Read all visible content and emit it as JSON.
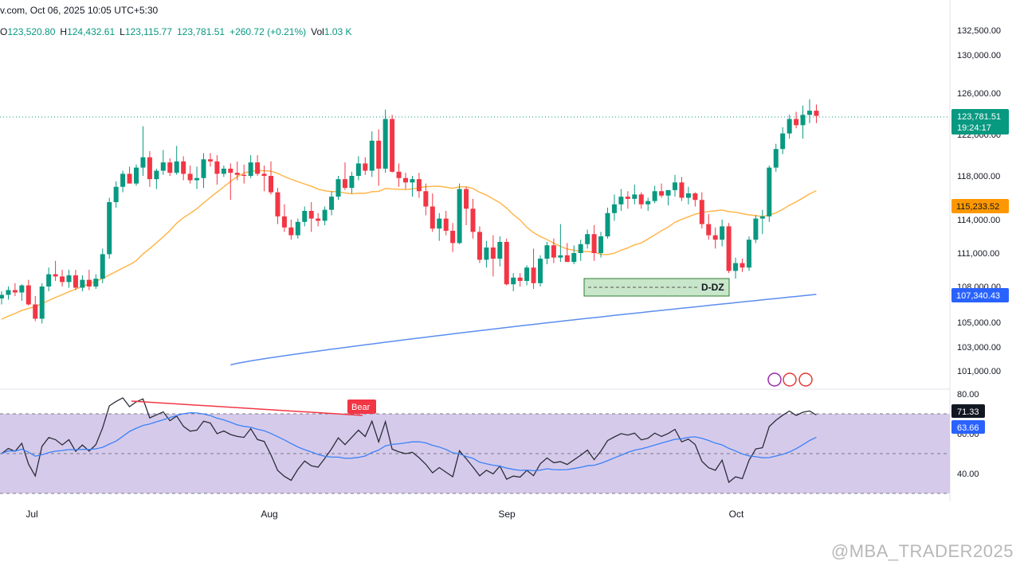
{
  "header": {
    "title": "v.com, Oct 06, 2025 10:05 UTC+5:30",
    "ohlc": [
      {
        "key": "O",
        "val": "123,520.80"
      },
      {
        "key": "H",
        "val": "124,432.61"
      },
      {
        "key": "L",
        "val": "123,115.77"
      },
      {
        "key": "",
        "val": "123,781.51"
      },
      {
        "key": "",
        "val": "+260.72 (+0.21%)"
      },
      {
        "key": "Vol",
        "val": "1.03 K"
      }
    ]
  },
  "colors": {
    "up": "#089981",
    "down": "#f23645",
    "ma_fast": "#ffb74d",
    "ma_slow": "#5b8def",
    "rsi_line": "#2a2e39",
    "rsi_ma": "#3b82f6",
    "rsi_band": "#d1c4e9",
    "dz_fill": "#c8e6c9",
    "dz_border": "#2e7d32"
  },
  "chart_data": {
    "type": "candlestick",
    "xlabels": [
      "Jul",
      "Aug",
      "Sep",
      "Oct"
    ],
    "ylim": [
      100000,
      132500
    ],
    "price_axis_labels": [
      "132,500.00",
      "130,000.00",
      "126,000.00",
      "122,000.00",
      "118,000.00",
      "114,000.00",
      "111,000.00",
      "108,000.00",
      "105,000.00",
      "103,000.00",
      "101,000.00"
    ],
    "price_axis_values": [
      132500,
      130000,
      126000,
      122000,
      118000,
      114000,
      111000,
      108000,
      105000,
      103000,
      101000
    ],
    "current_price_label": "123,781.51",
    "countdown_label": "19:24:17",
    "ma_fast_label": "115,233.52",
    "ma_slow_label": "107,340.43",
    "demand_zone_label": "D-DZ",
    "candles": [
      [
        107000,
        107600,
        106500,
        107300
      ],
      [
        107300,
        108000,
        106900,
        107700
      ],
      [
        107700,
        108300,
        107200,
        107500
      ],
      [
        107500,
        108200,
        106800,
        108100
      ],
      [
        108100,
        108600,
        106400,
        106500
      ],
      [
        106500,
        107200,
        105100,
        105300
      ],
      [
        105300,
        108300,
        104900,
        108000
      ],
      [
        108000,
        109700,
        107600,
        109100
      ],
      [
        109100,
        110300,
        108500,
        108900
      ],
      [
        108900,
        109500,
        108000,
        108400
      ],
      [
        108400,
        109500,
        107900,
        109000
      ],
      [
        109000,
        109500,
        107700,
        107900
      ],
      [
        107900,
        109000,
        107600,
        108600
      ],
      [
        108600,
        109500,
        107700,
        108000
      ],
      [
        108000,
        109100,
        107800,
        108700
      ],
      [
        108700,
        111400,
        108300,
        110900
      ],
      [
        110900,
        116000,
        110500,
        115600
      ],
      [
        115600,
        117500,
        115100,
        117000
      ],
      [
        117000,
        118500,
        116500,
        118200
      ],
      [
        118200,
        118900,
        117400,
        117300
      ],
      [
        117300,
        119100,
        117100,
        118800
      ],
      [
        118800,
        122800,
        118000,
        119800
      ],
      [
        119800,
        120400,
        117000,
        117700
      ],
      [
        117700,
        118700,
        116800,
        118500
      ],
      [
        118500,
        120500,
        118100,
        119300
      ],
      [
        119300,
        119700,
        118000,
        118300
      ],
      [
        118300,
        120900,
        118100,
        119400
      ],
      [
        119400,
        119900,
        117600,
        118200
      ],
      [
        118200,
        119000,
        117300,
        117600
      ],
      [
        117600,
        118900,
        116800,
        117800
      ],
      [
        117800,
        120200,
        116900,
        119600
      ],
      [
        119600,
        120200,
        118900,
        119400
      ],
      [
        119400,
        120000,
        117200,
        118200
      ],
      [
        118200,
        119000,
        117900,
        118700
      ],
      [
        118700,
        119200,
        115800,
        118300
      ],
      [
        118300,
        119400,
        117600,
        118100
      ],
      [
        118100,
        119100,
        117300,
        118000
      ],
      [
        118000,
        120000,
        117800,
        119300
      ],
      [
        119300,
        120000,
        118000,
        118200
      ],
      [
        118200,
        119000,
        116600,
        118000
      ],
      [
        118000,
        119400,
        116300,
        116500
      ],
      [
        116500,
        116900,
        113600,
        114300
      ],
      [
        114300,
        115400,
        112900,
        113300
      ],
      [
        113300,
        114000,
        112200,
        112600
      ],
      [
        112600,
        114100,
        112300,
        113800
      ],
      [
        113800,
        115200,
        113400,
        114800
      ],
      [
        114800,
        115600,
        112900,
        114100
      ],
      [
        114100,
        114600,
        113400,
        113900
      ],
      [
        113900,
        115200,
        113500,
        114900
      ],
      [
        114900,
        116600,
        114400,
        116100
      ],
      [
        116100,
        118000,
        115800,
        117700
      ],
      [
        117700,
        119300,
        116700,
        116900
      ],
      [
        116900,
        118400,
        116400,
        118000
      ],
      [
        118000,
        119900,
        117600,
        119200
      ],
      [
        119200,
        119800,
        118100,
        118500
      ],
      [
        118500,
        122300,
        117900,
        121400
      ],
      [
        121400,
        122500,
        117100,
        118700
      ],
      [
        118700,
        124400,
        118300,
        123500
      ],
      [
        123500,
        123900,
        118300,
        118400
      ],
      [
        118400,
        119200,
        117000,
        117800
      ],
      [
        117800,
        118300,
        116800,
        117400
      ],
      [
        117400,
        118000,
        116100,
        117700
      ],
      [
        117700,
        118300,
        116000,
        116600
      ],
      [
        116600,
        117300,
        114400,
        115200
      ],
      [
        115200,
        116400,
        112900,
        113200
      ],
      [
        113200,
        114600,
        112100,
        114100
      ],
      [
        114100,
        114800,
        112600,
        113000
      ],
      [
        113000,
        113700,
        111100,
        111900
      ],
      [
        111900,
        117300,
        111800,
        116800
      ],
      [
        116800,
        117000,
        113500,
        115000
      ],
      [
        115000,
        115900,
        112300,
        112900
      ],
      [
        112900,
        113400,
        110100,
        110400
      ],
      [
        110400,
        112100,
        109700,
        111500
      ],
      [
        111500,
        112600,
        108900,
        110500
      ],
      [
        110500,
        112500,
        109800,
        112000
      ],
      [
        112000,
        112300,
        108100,
        108200
      ],
      [
        108200,
        109200,
        107600,
        108800
      ],
      [
        108800,
        109200,
        108000,
        108500
      ],
      [
        108500,
        109900,
        108100,
        109700
      ],
      [
        109700,
        111400,
        107800,
        108300
      ],
      [
        108300,
        110800,
        108000,
        110500
      ],
      [
        110500,
        112000,
        110000,
        111700
      ],
      [
        111700,
        112300,
        110100,
        110600
      ],
      [
        110600,
        113600,
        110200,
        110800
      ],
      [
        110800,
        111900,
        110300,
        110200
      ],
      [
        110200,
        111700,
        110000,
        111000
      ],
      [
        111000,
        112200,
        110300,
        111800
      ],
      [
        111800,
        113100,
        111400,
        112700
      ],
      [
        112700,
        113500,
        110300,
        111000
      ],
      [
        111000,
        112900,
        110600,
        112500
      ],
      [
        112500,
        115100,
        112300,
        114600
      ],
      [
        114600,
        116300,
        113900,
        115400
      ],
      [
        115400,
        116800,
        114800,
        116100
      ],
      [
        116100,
        116600,
        115000,
        115900
      ],
      [
        115900,
        117200,
        115400,
        116300
      ],
      [
        116300,
        116500,
        115000,
        115400
      ],
      [
        115400,
        116000,
        114800,
        115700
      ],
      [
        115700,
        117100,
        115500,
        116600
      ],
      [
        116600,
        117300,
        116000,
        116200
      ],
      [
        116200,
        116700,
        115300,
        116700
      ],
      [
        116700,
        118100,
        116100,
        117400
      ],
      [
        117400,
        117900,
        115700,
        116000
      ],
      [
        116000,
        117000,
        115400,
        116400
      ],
      [
        116400,
        116500,
        115200,
        115800
      ],
      [
        115800,
        116500,
        113200,
        113600
      ],
      [
        113600,
        114500,
        112200,
        112600
      ],
      [
        112600,
        113300,
        111400,
        112200
      ],
      [
        112200,
        114000,
        111600,
        113400
      ],
      [
        113400,
        113700,
        109200,
        109400
      ],
      [
        109400,
        110600,
        108700,
        110100
      ],
      [
        110100,
        110500,
        109300,
        109700
      ],
      [
        109700,
        112500,
        109400,
        112200
      ],
      [
        112200,
        114400,
        111900,
        114100
      ],
      [
        114100,
        114900,
        112700,
        114300
      ],
      [
        114300,
        119000,
        113800,
        118800
      ],
      [
        118800,
        121100,
        118400,
        120600
      ],
      [
        120600,
        122700,
        120100,
        122100
      ],
      [
        122100,
        123900,
        121600,
        123500
      ],
      [
        123500,
        124200,
        122600,
        122900
      ],
      [
        122900,
        124800,
        121600,
        123900
      ],
      [
        123900,
        125400,
        123100,
        124300
      ],
      [
        124300,
        124900,
        123100,
        123800
      ]
    ],
    "rsi_axis_labels": [
      "80.00",
      "60.00",
      "40.00"
    ],
    "rsi_axis_values": [
      80,
      60,
      40
    ],
    "rsi_levels": [
      70,
      50,
      30
    ],
    "rsi_last_label": "71.33",
    "rsi_ma_label": "63.66",
    "divergence_label": "Bear"
  },
  "watermark": "@MBA_TRADER2025"
}
